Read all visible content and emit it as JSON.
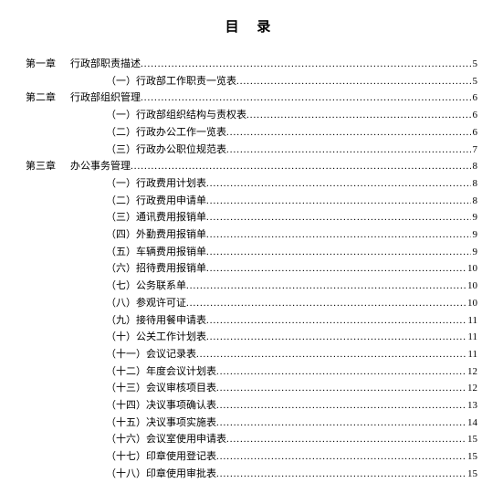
{
  "title": "目 录",
  "entries": [
    {
      "type": "chapter",
      "chapter": "第一章",
      "text": "行政部职责描述",
      "page": "5"
    },
    {
      "type": "sub",
      "text": "（一）行政部工作职责一览表",
      "page": "5"
    },
    {
      "type": "chapter",
      "chapter": "第二章",
      "text": "行政部组织管理",
      "page": "6"
    },
    {
      "type": "sub",
      "text": "（一）行政部组织结构与责权表",
      "page": "6"
    },
    {
      "type": "sub",
      "text": "（二）行政办公工作一览表",
      "page": "6"
    },
    {
      "type": "sub",
      "text": "（三）行政办公职位规范表",
      "page": "7"
    },
    {
      "type": "chapter",
      "chapter": "第三章",
      "text": "办公事务管理",
      "page": "8"
    },
    {
      "type": "sub",
      "text": "（一）行政费用计划表",
      "page": "8"
    },
    {
      "type": "sub",
      "text": "（二）行政费用申请单",
      "page": "8"
    },
    {
      "type": "sub",
      "text": "（三）通讯费用报销单",
      "page": "9"
    },
    {
      "type": "sub",
      "text": "（四）外勤费用报销单",
      "page": "9"
    },
    {
      "type": "sub",
      "text": "（五）车辆费用报销单",
      "page": "9"
    },
    {
      "type": "sub",
      "text": "（六）招待费用报销单",
      "page": "10"
    },
    {
      "type": "sub",
      "text": "（七）公务联系单",
      "page": "10"
    },
    {
      "type": "sub",
      "text": "（八）参观许可证",
      "page": "10"
    },
    {
      "type": "sub",
      "text": "（九）接待用餐申请表",
      "page": "11"
    },
    {
      "type": "sub",
      "text": "（十）公关工作计划表",
      "page": "11"
    },
    {
      "type": "sub",
      "text": "（十一）会议记录表",
      "page": "11"
    },
    {
      "type": "sub",
      "text": "（十二）年度会议计划表",
      "page": "12"
    },
    {
      "type": "sub",
      "text": "（十三）会议审核项目表",
      "page": "12"
    },
    {
      "type": "sub",
      "text": "（十四）决议事项确认表",
      "page": "13"
    },
    {
      "type": "sub",
      "text": "（十五）决议事项实施表",
      "page": "14"
    },
    {
      "type": "sub",
      "text": "（十六）会议室使用申请表",
      "page": "15"
    },
    {
      "type": "sub",
      "text": "（十七）印章使用登记表",
      "page": "15"
    },
    {
      "type": "sub",
      "text": "（十八）印章使用审批表",
      "page": "15"
    }
  ]
}
